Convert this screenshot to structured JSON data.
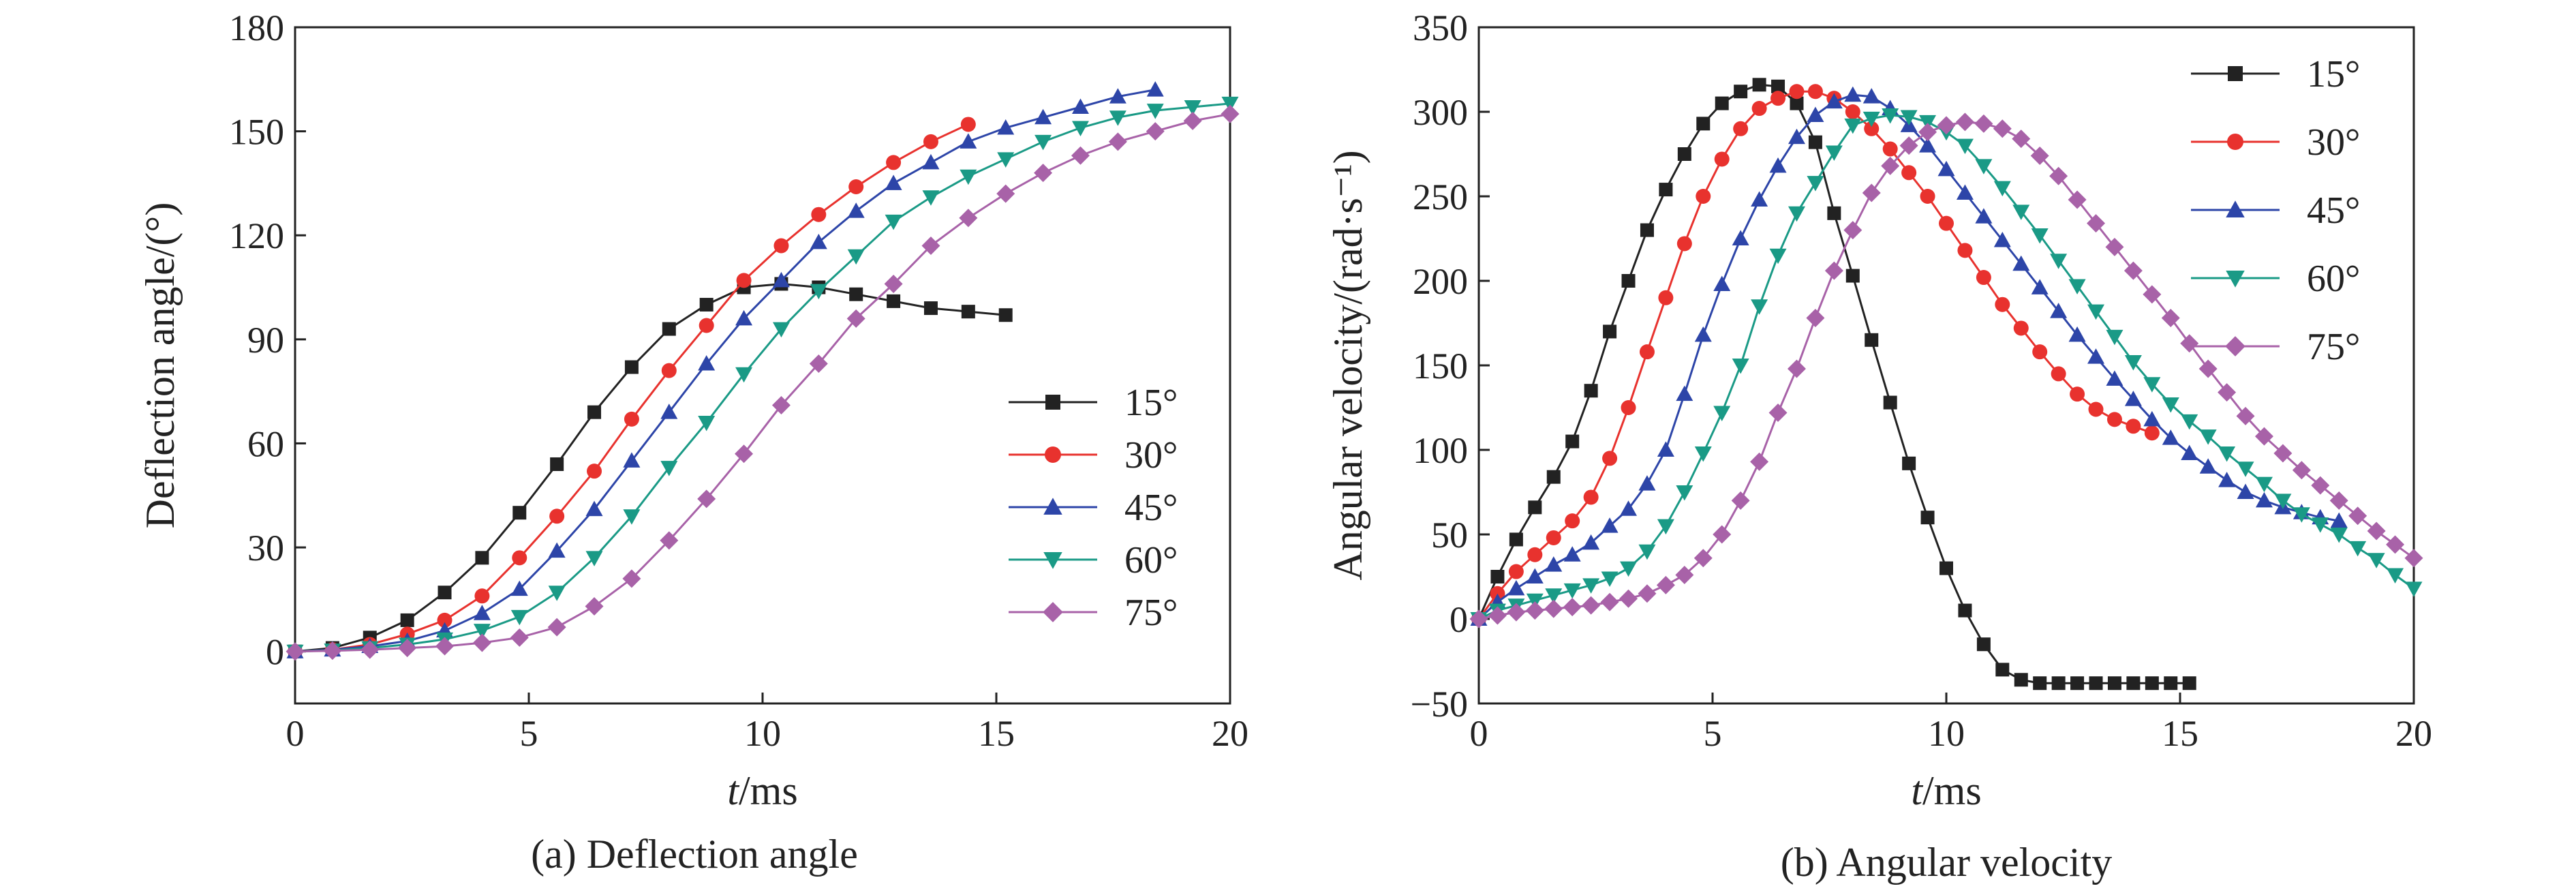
{
  "chart_data": [
    {
      "type": "line",
      "caption": "(a) Deflection angle",
      "xlabel_italic": "t",
      "xlabel_rest": "/ms",
      "ylabel": "Deflection angle/(°)",
      "xlim": [
        0,
        20
      ],
      "ylim": [
        -15,
        180
      ],
      "xticks": [
        0,
        5,
        10,
        15,
        20
      ],
      "yticks": [
        0,
        30,
        60,
        90,
        120,
        150,
        180
      ],
      "legend_position": "lower-right",
      "series": [
        {
          "name": "15°",
          "color": "#222222",
          "marker": "square",
          "x": [
            0,
            0.8,
            1.6,
            2.4,
            3.2,
            4.0,
            4.8,
            5.6,
            6.4,
            7.2,
            8.0,
            8.8,
            9.6,
            10.4,
            11.2,
            12.0,
            12.8,
            13.6,
            14.4,
            15.2
          ],
          "y": [
            0,
            1,
            4,
            9,
            17,
            27,
            40,
            54,
            69,
            82,
            93,
            100,
            105,
            106,
            105,
            103,
            101,
            99,
            98,
            97
          ]
        },
        {
          "name": "30°",
          "color": "#e8322e",
          "marker": "circle",
          "x": [
            0,
            0.8,
            1.6,
            2.4,
            3.2,
            4.0,
            4.8,
            5.6,
            6.4,
            7.2,
            8.0,
            8.8,
            9.6,
            10.4,
            11.2,
            12.0,
            12.8,
            13.6,
            14.4
          ],
          "y": [
            0,
            0.5,
            2,
            5,
            9,
            16,
            27,
            39,
            52,
            67,
            81,
            94,
            107,
            117,
            126,
            134,
            141,
            147,
            152
          ]
        },
        {
          "name": "45°",
          "color": "#2d45a8",
          "marker": "triangle-up",
          "x": [
            0,
            0.8,
            1.6,
            2.4,
            3.2,
            4.0,
            4.8,
            5.6,
            6.4,
            7.2,
            8.0,
            8.8,
            9.6,
            10.4,
            11.2,
            12.0,
            12.8,
            13.6,
            14.4,
            15.2,
            16.0,
            16.8,
            17.6,
            18.4
          ],
          "y": [
            0,
            0.5,
            1.5,
            3,
            6,
            11,
            18,
            29,
            41,
            55,
            69,
            83,
            96,
            107,
            118,
            127,
            135,
            141,
            147,
            151,
            154,
            157,
            160,
            162
          ]
        },
        {
          "name": "60°",
          "color": "#1a9a86",
          "marker": "triangle-down",
          "x": [
            0,
            0.8,
            1.6,
            2.4,
            3.2,
            4.0,
            4.8,
            5.6,
            6.4,
            7.2,
            8.0,
            8.8,
            9.6,
            10.4,
            11.2,
            12.0,
            12.8,
            13.6,
            14.4,
            15.2,
            16.0,
            16.8,
            17.6,
            18.4,
            19.2,
            20.0
          ],
          "y": [
            0,
            0.3,
            1,
            2,
            3.5,
            6,
            10,
            17,
            27,
            39,
            53,
            66,
            80,
            93,
            104,
            114,
            124,
            131,
            137,
            142,
            147,
            151,
            154,
            156,
            157,
            158
          ]
        },
        {
          "name": "75°",
          "color": "#a862a8",
          "marker": "diamond",
          "x": [
            0,
            0.8,
            1.6,
            2.4,
            3.2,
            4.0,
            4.8,
            5.6,
            6.4,
            7.2,
            8.0,
            8.8,
            9.6,
            10.4,
            11.2,
            12.0,
            12.8,
            13.6,
            14.4,
            15.2,
            16.0,
            16.8,
            17.6,
            18.4,
            19.2,
            20.0
          ],
          "y": [
            0,
            0.2,
            0.5,
            1,
            1.5,
            2.5,
            4,
            7,
            13,
            21,
            32,
            44,
            57,
            71,
            83,
            96,
            106,
            117,
            125,
            132,
            138,
            143,
            147,
            150,
            153,
            155
          ]
        }
      ]
    },
    {
      "type": "line",
      "caption": "(b) Angular velocity",
      "xlabel_italic": "t",
      "xlabel_rest": "/ms",
      "ylabel": "Angular velocity/(rad·s⁻¹)",
      "xlim": [
        0,
        20
      ],
      "ylim": [
        -50,
        350
      ],
      "xticks": [
        0,
        5,
        10,
        15,
        20
      ],
      "yticks": [
        -50,
        0,
        50,
        100,
        150,
        200,
        250,
        300,
        350
      ],
      "legend_position": "upper-right",
      "series": [
        {
          "name": "15°",
          "color": "#222222",
          "marker": "square",
          "x": [
            0,
            0.4,
            0.8,
            1.2,
            1.6,
            2.0,
            2.4,
            2.8,
            3.2,
            3.6,
            4.0,
            4.4,
            4.8,
            5.2,
            5.6,
            6.0,
            6.4,
            6.8,
            7.2,
            7.6,
            8.0,
            8.4,
            8.8,
            9.2,
            9.6,
            10.0,
            10.4,
            10.8,
            11.2,
            11.6,
            12.0,
            12.4,
            12.8,
            13.2,
            13.6,
            14.0,
            14.4,
            14.8,
            15.2
          ],
          "y": [
            0,
            25,
            47,
            66,
            84,
            105,
            135,
            170,
            200,
            230,
            254,
            275,
            293,
            305,
            312,
            316,
            315,
            305,
            282,
            240,
            203,
            165,
            128,
            92,
            60,
            30,
            5,
            -15,
            -30,
            -36,
            -38,
            -38,
            -38,
            -38,
            -38,
            -38,
            -38,
            -38,
            -38
          ]
        },
        {
          "name": "30°",
          "color": "#e8322e",
          "marker": "circle",
          "x": [
            0,
            0.4,
            0.8,
            1.2,
            1.6,
            2.0,
            2.4,
            2.8,
            3.2,
            3.6,
            4.0,
            4.4,
            4.8,
            5.2,
            5.6,
            6.0,
            6.4,
            6.8,
            7.2,
            7.6,
            8.0,
            8.4,
            8.8,
            9.2,
            9.6,
            10.0,
            10.4,
            10.8,
            11.2,
            11.6,
            12.0,
            12.4,
            12.8,
            13.2,
            13.6,
            14.0,
            14.4
          ],
          "y": [
            0,
            15,
            28,
            38,
            48,
            58,
            72,
            95,
            125,
            158,
            190,
            222,
            250,
            272,
            290,
            302,
            308,
            312,
            312,
            308,
            300,
            290,
            278,
            264,
            250,
            234,
            218,
            202,
            186,
            172,
            158,
            145,
            133,
            124,
            118,
            114,
            110
          ]
        },
        {
          "name": "45°",
          "color": "#2d45a8",
          "marker": "triangle-up",
          "x": [
            0,
            0.4,
            0.8,
            1.2,
            1.6,
            2.0,
            2.4,
            2.8,
            3.2,
            3.6,
            4.0,
            4.4,
            4.8,
            5.2,
            5.6,
            6.0,
            6.4,
            6.8,
            7.2,
            7.6,
            8.0,
            8.4,
            8.8,
            9.2,
            9.6,
            10.0,
            10.4,
            10.8,
            11.2,
            11.6,
            12.0,
            12.4,
            12.8,
            13.2,
            13.6,
            14.0,
            14.4,
            14.8,
            15.2,
            15.6,
            16.0,
            16.4,
            16.8,
            17.2,
            17.6,
            18.0,
            18.4
          ],
          "y": [
            0,
            10,
            18,
            25,
            32,
            38,
            45,
            55,
            65,
            80,
            100,
            133,
            168,
            198,
            225,
            248,
            268,
            285,
            298,
            306,
            310,
            309,
            302,
            292,
            280,
            266,
            252,
            238,
            224,
            210,
            196,
            182,
            168,
            155,
            142,
            130,
            118,
            107,
            98,
            90,
            82,
            75,
            70,
            66,
            63,
            60,
            58
          ]
        },
        {
          "name": "60°",
          "color": "#1a9a86",
          "marker": "triangle-down",
          "x": [
            0,
            0.4,
            0.8,
            1.2,
            1.6,
            2.0,
            2.4,
            2.8,
            3.2,
            3.6,
            4.0,
            4.4,
            4.8,
            5.2,
            5.6,
            6.0,
            6.4,
            6.8,
            7.2,
            7.6,
            8.0,
            8.4,
            8.8,
            9.2,
            9.6,
            10.0,
            10.4,
            10.8,
            11.2,
            11.6,
            12.0,
            12.4,
            12.8,
            13.2,
            13.6,
            14.0,
            14.4,
            14.8,
            15.2,
            15.6,
            16.0,
            16.4,
            16.8,
            17.2,
            17.6,
            18.0,
            18.4,
            18.8,
            19.2,
            19.6,
            20.0
          ],
          "y": [
            0,
            5,
            8,
            11,
            14,
            17,
            20,
            24,
            30,
            40,
            55,
            75,
            98,
            122,
            150,
            185,
            215,
            240,
            258,
            276,
            292,
            296,
            298,
            297,
            294,
            288,
            280,
            268,
            255,
            241,
            227,
            212,
            197,
            182,
            167,
            152,
            139,
            127,
            117,
            108,
            98,
            89,
            80,
            70,
            62,
            56,
            50,
            42,
            35,
            26,
            18
          ]
        },
        {
          "name": "75°",
          "color": "#a862a8",
          "marker": "diamond",
          "x": [
            0,
            0.4,
            0.8,
            1.2,
            1.6,
            2.0,
            2.4,
            2.8,
            3.2,
            3.6,
            4.0,
            4.4,
            4.8,
            5.2,
            5.6,
            6.0,
            6.4,
            6.8,
            7.2,
            7.6,
            8.0,
            8.4,
            8.8,
            9.2,
            9.6,
            10.0,
            10.4,
            10.8,
            11.2,
            11.6,
            12.0,
            12.4,
            12.8,
            13.2,
            13.6,
            14.0,
            14.4,
            14.8,
            15.2,
            15.6,
            16.0,
            16.4,
            16.8,
            17.2,
            17.6,
            18.0,
            18.4,
            18.8,
            19.2,
            19.6,
            20.0
          ],
          "y": [
            0,
            2,
            4,
            5,
            6,
            7,
            8,
            10,
            12,
            15,
            20,
            26,
            36,
            50,
            70,
            93,
            122,
            148,
            178,
            206,
            230,
            252,
            268,
            280,
            288,
            292,
            294,
            293,
            290,
            284,
            274,
            262,
            248,
            234,
            220,
            206,
            192,
            178,
            163,
            148,
            134,
            120,
            108,
            98,
            88,
            79,
            70,
            61,
            52,
            44,
            36
          ]
        }
      ]
    }
  ]
}
